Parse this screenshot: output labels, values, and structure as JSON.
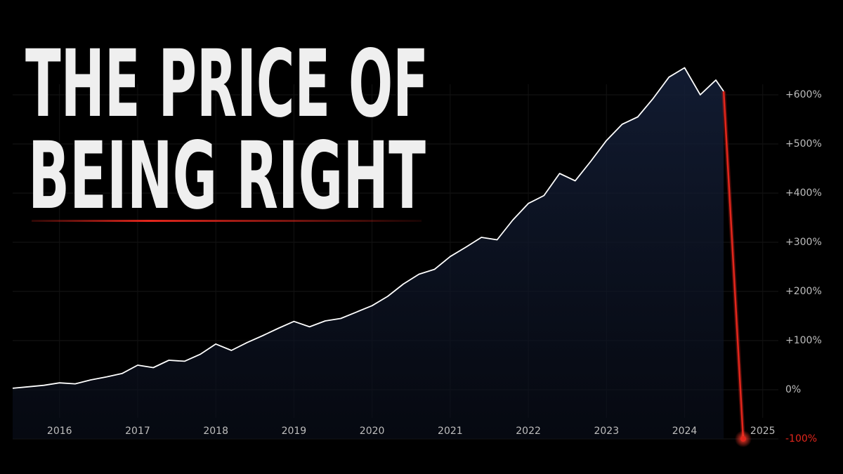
{
  "chart_data": {
    "type": "line",
    "title": [
      "THE PRICE OF",
      "BEING RIGHT"
    ],
    "x": [
      2015.4,
      2015.6,
      2015.8,
      2016.0,
      2016.2,
      2016.4,
      2016.6,
      2016.8,
      2017.0,
      2017.2,
      2017.4,
      2017.6,
      2017.8,
      2018.0,
      2018.2,
      2018.4,
      2018.6,
      2018.8,
      2019.0,
      2019.2,
      2019.4,
      2019.6,
      2019.8,
      2020.0,
      2020.2,
      2020.4,
      2020.6,
      2020.8,
      2021.0,
      2021.2,
      2021.4,
      2021.6,
      2021.8,
      2022.0,
      2022.2,
      2022.4,
      2022.6,
      2022.8,
      2023.0,
      2023.2,
      2023.4,
      2023.6,
      2023.8,
      2024.0,
      2024.2,
      2024.4,
      2024.5,
      2024.75
    ],
    "series": [
      {
        "color": "#ffffff",
        "crash_color": "#e3261c",
        "values": [
          3,
          6,
          9,
          14,
          12,
          20,
          26,
          33,
          50,
          45,
          60,
          58,
          72,
          93,
          80,
          96,
          110,
          125,
          139,
          128,
          140,
          145,
          158,
          171,
          190,
          215,
          235,
          245,
          271,
          290,
          310,
          305,
          345,
          379,
          395,
          440,
          425,
          465,
          507,
          540,
          555,
          593,
          636,
          655,
          600,
          630,
          607,
          -100
        ]
      }
    ],
    "xlim": [
      2015.4,
      2025.2
    ],
    "xticks": [
      2016,
      2017,
      2018,
      2019,
      2020,
      2021,
      2022,
      2023,
      2024,
      2025
    ],
    "ylim": [
      -100,
      650
    ],
    "yticks": [
      {
        "value": -100,
        "label": "-100%"
      },
      {
        "value": 0,
        "label": "0%"
      },
      {
        "value": 100,
        "label": "+100%"
      },
      {
        "value": 200,
        "label": "+200%"
      },
      {
        "value": 300,
        "label": "+300%"
      },
      {
        "value": 400,
        "label": "+400%"
      },
      {
        "value": 500,
        "label": "+500%"
      },
      {
        "value": 600,
        "label": "+600%"
      }
    ],
    "grid": true
  }
}
